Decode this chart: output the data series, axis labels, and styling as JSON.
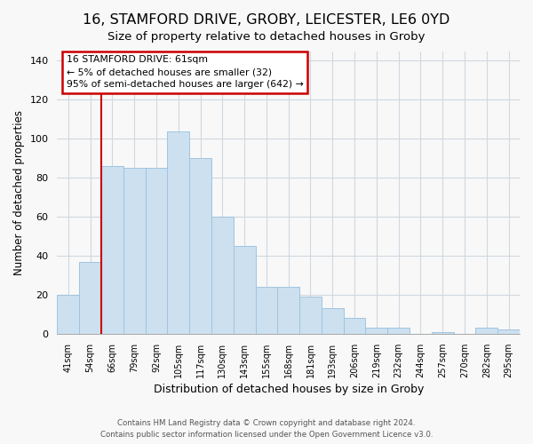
{
  "title": "16, STAMFORD DRIVE, GROBY, LEICESTER, LE6 0YD",
  "subtitle": "Size of property relative to detached houses in Groby",
  "xlabel": "Distribution of detached houses by size in Groby",
  "ylabel": "Number of detached properties",
  "bar_labels": [
    "41sqm",
    "54sqm",
    "66sqm",
    "79sqm",
    "92sqm",
    "105sqm",
    "117sqm",
    "130sqm",
    "143sqm",
    "155sqm",
    "168sqm",
    "181sqm",
    "193sqm",
    "206sqm",
    "219sqm",
    "232sqm",
    "244sqm",
    "257sqm",
    "270sqm",
    "282sqm",
    "295sqm"
  ],
  "bar_values": [
    20,
    37,
    86,
    85,
    85,
    104,
    90,
    60,
    45,
    24,
    24,
    19,
    13,
    8,
    3,
    3,
    0,
    1,
    0,
    3,
    2
  ],
  "bar_color": "#cce0f0",
  "bar_edge_color": "#a0c4df",
  "vline_x_index": 1,
  "vline_color": "#cc0000",
  "ylim": [
    0,
    145
  ],
  "yticks": [
    0,
    20,
    40,
    60,
    80,
    100,
    120,
    140
  ],
  "annotation_title": "16 STAMFORD DRIVE: 61sqm",
  "annotation_line1": "← 5% of detached houses are smaller (32)",
  "annotation_line2": "95% of semi-detached houses are larger (642) →",
  "annotation_box_color": "#ffffff",
  "annotation_box_edge": "#cc0000",
  "footer1": "Contains HM Land Registry data © Crown copyright and database right 2024.",
  "footer2": "Contains public sector information licensed under the Open Government Licence v3.0.",
  "bg_color": "#f8f8f8",
  "title_fontsize": 11.5,
  "subtitle_fontsize": 9.5,
  "grid_color": "#d0d8e0"
}
